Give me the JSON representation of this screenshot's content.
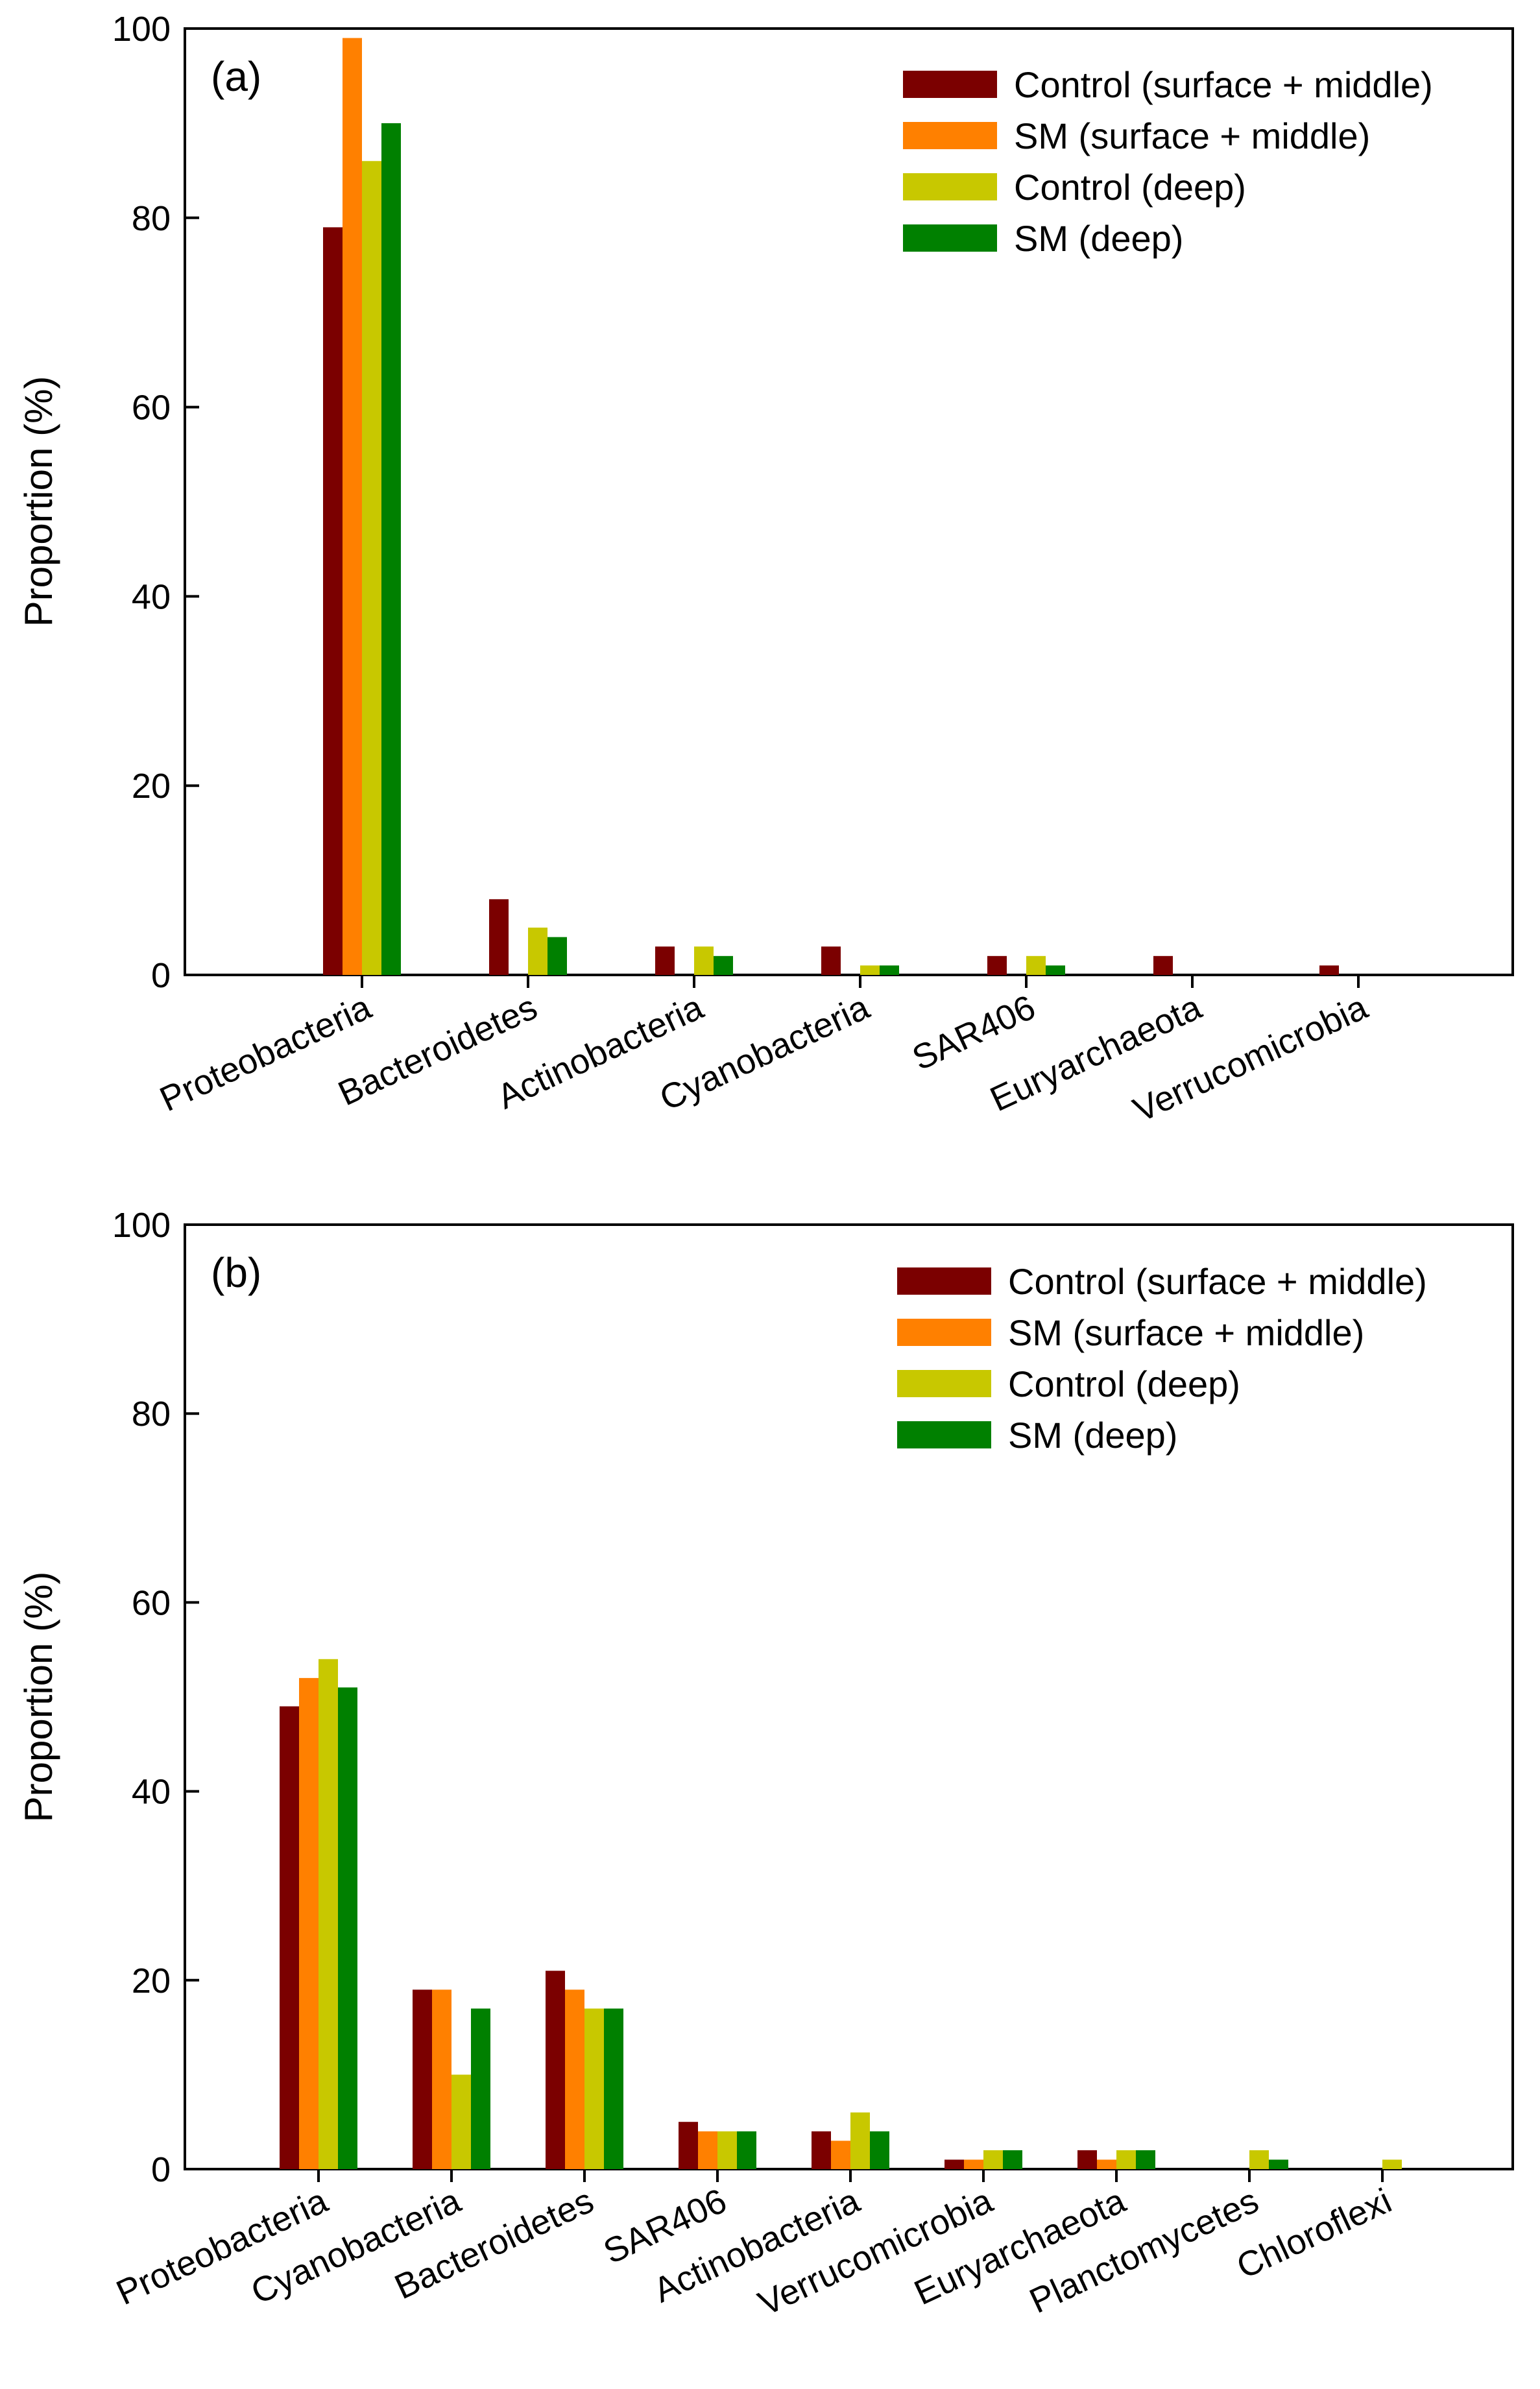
{
  "colors": {
    "control_surface_middle": "#7b0000",
    "sm_surface_middle": "#ff8000",
    "control_deep": "#c8c800",
    "sm_deep": "#008000"
  },
  "chart_data": [
    {
      "type": "bar",
      "panel_label": "(a)",
      "ylabel": "Proportion (%)",
      "xlabel": "",
      "ylim": [
        0,
        100
      ],
      "yticks": [
        "0",
        "20",
        "40",
        "60",
        "80",
        "100"
      ],
      "legend_position": "top-right",
      "categories": [
        "Proteobacteria",
        "Bacteroidetes",
        "Actinobacteria",
        "Cyanobacteria",
        "SAR406",
        "Euryarchaeota",
        "Verrucomicrobia"
      ],
      "series": [
        {
          "name": "Control (surface + middle)",
          "color": "#7b0000",
          "values": [
            79,
            8,
            3,
            3,
            2,
            2,
            1
          ]
        },
        {
          "name": "SM (surface + middle)",
          "color": "#ff8000",
          "values": [
            99,
            0,
            0,
            0,
            0,
            0,
            0
          ]
        },
        {
          "name": "Control (deep)",
          "color": "#c8c800",
          "values": [
            86,
            5,
            3,
            1,
            2,
            0,
            0
          ]
        },
        {
          "name": "SM (deep)",
          "color": "#008000",
          "values": [
            90,
            4,
            2,
            1,
            1,
            0,
            0
          ]
        }
      ]
    },
    {
      "type": "bar",
      "panel_label": "(b)",
      "ylabel": "Proportion (%)",
      "xlabel": "",
      "ylim": [
        0,
        100
      ],
      "yticks": [
        "0",
        "20",
        "40",
        "60",
        "80",
        "100"
      ],
      "legend_position": "top-right",
      "categories": [
        "Proteobacteria",
        "Cyanobacteria",
        "Bacteroidetes",
        "SAR406",
        "Actinobacteria",
        "Verrucomicrobia",
        "Euryarchaeota",
        "Planctomycetes",
        "Chloroflexi"
      ],
      "series": [
        {
          "name": "Control (surface + middle)",
          "color": "#7b0000",
          "values": [
            49,
            19,
            21,
            5,
            4,
            1,
            2,
            0,
            0
          ]
        },
        {
          "name": "SM (surface + middle)",
          "color": "#ff8000",
          "values": [
            52,
            19,
            19,
            4,
            3,
            1,
            1,
            0,
            0
          ]
        },
        {
          "name": "Control (deep)",
          "color": "#c8c800",
          "values": [
            54,
            10,
            17,
            4,
            6,
            2,
            2,
            2,
            1
          ]
        },
        {
          "name": "SM (deep)",
          "color": "#008000",
          "values": [
            51,
            17,
            17,
            4,
            4,
            2,
            2,
            1,
            0
          ]
        }
      ]
    }
  ]
}
